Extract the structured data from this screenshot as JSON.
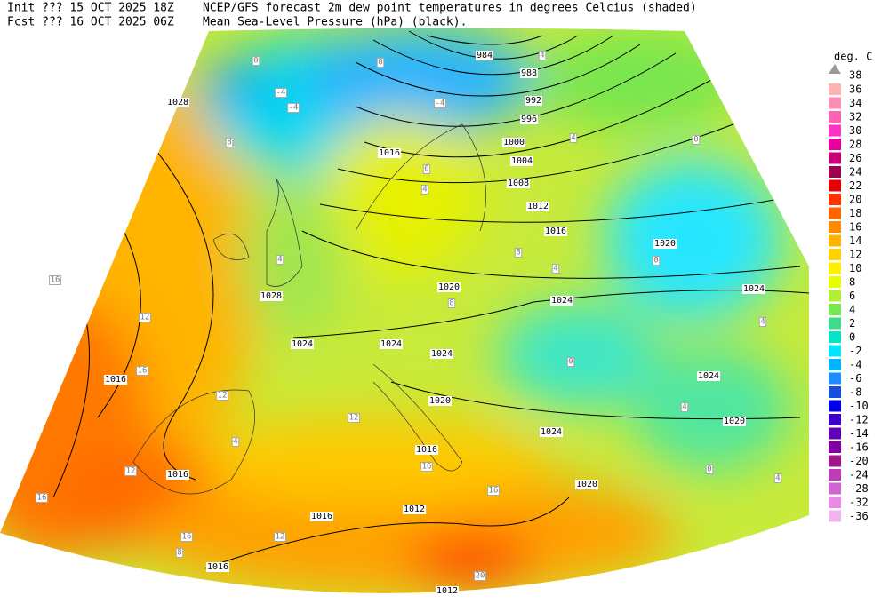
{
  "header": {
    "init_label": "Init  ??? 15 OCT 2025 18Z",
    "init_title": "NCEP/GFS forecast 2m dew point temperatures in degrees Celcius (shaded)",
    "fcst_label": "Fcst ??? 16 OCT 2025 06Z",
    "fcst_title": "Mean Sea-Level Pressure (hPa) (black)."
  },
  "legend": {
    "unit": "deg. C",
    "top": 38,
    "levels": [
      36,
      34,
      32,
      30,
      28,
      26,
      24,
      22,
      20,
      18,
      16,
      14,
      12,
      10,
      8,
      6,
      4,
      2,
      0,
      -2,
      -4,
      -6,
      -8,
      -10,
      -12,
      -14,
      -16,
      -20,
      -24,
      -28,
      -32,
      -36
    ],
    "colors": [
      "#ffb4b4",
      "#ff8cb4",
      "#ff64b4",
      "#ff32c8",
      "#e600a0",
      "#c80078",
      "#a00050",
      "#e60000",
      "#ff3200",
      "#ff6400",
      "#ff8c00",
      "#ffb400",
      "#ffd200",
      "#fff000",
      "#e6ff00",
      "#b4f032",
      "#78e650",
      "#3cdc8c",
      "#00e6c8",
      "#00e6ff",
      "#00b4ff",
      "#1e8cff",
      "#1450dc",
      "#0000e6",
      "#3c00c8",
      "#6400b4",
      "#8200a0",
      "#a0148c",
      "#be3cb4",
      "#d264d2",
      "#e68ce6",
      "#f0b4f0"
    ]
  },
  "map": {
    "isobar_labels": [
      984,
      988,
      992,
      996,
      1000,
      1004,
      1008,
      1012,
      1016,
      1020,
      1020,
      1024,
      1024,
      1024,
      1024,
      1024,
      1024,
      1020,
      1024,
      1020,
      1016,
      1016,
      1016,
      1028,
      1016,
      1028,
      1016,
      1012,
      1016,
      1012,
      1020
    ],
    "dewpoint_labels": [
      0,
      -4,
      -4,
      0,
      4,
      4,
      0,
      8,
      4,
      16,
      12,
      16,
      12,
      4,
      12,
      16,
      16,
      12,
      8,
      16,
      16,
      12,
      20,
      0,
      4,
      0,
      4,
      4,
      0,
      8,
      8,
      4,
      -4,
      0,
      4
    ]
  }
}
